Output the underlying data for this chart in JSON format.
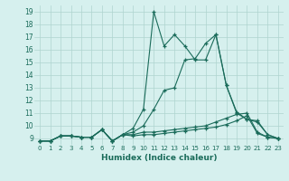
{
  "xlabel": "Humidex (Indice chaleur)",
  "bg_color": "#d6f0ee",
  "grid_color": "#afd4cf",
  "line_color": "#1a6b5a",
  "xlim": [
    -0.5,
    23.5
  ],
  "ylim": [
    8.5,
    19.5
  ],
  "xticks": [
    0,
    1,
    2,
    3,
    4,
    5,
    6,
    7,
    8,
    9,
    10,
    11,
    12,
    13,
    14,
    15,
    16,
    17,
    18,
    19,
    20,
    21,
    22,
    23
  ],
  "yticks": [
    9,
    10,
    11,
    12,
    13,
    14,
    15,
    16,
    17,
    18,
    19
  ],
  "series": [
    [
      8.8,
      8.8,
      9.2,
      9.2,
      9.1,
      9.1,
      9.7,
      8.8,
      9.3,
      9.2,
      9.3,
      9.3,
      9.4,
      9.5,
      9.6,
      9.7,
      9.8,
      9.9,
      10.1,
      10.4,
      10.8,
      9.4,
      9.1,
      9.0
    ],
    [
      8.8,
      8.8,
      9.2,
      9.2,
      9.1,
      9.1,
      9.7,
      8.8,
      9.3,
      9.3,
      9.5,
      9.5,
      9.6,
      9.7,
      9.8,
      9.9,
      10.0,
      10.3,
      10.6,
      10.9,
      11.0,
      9.5,
      9.1,
      9.0
    ],
    [
      8.8,
      8.8,
      9.2,
      9.2,
      9.1,
      9.1,
      9.7,
      8.8,
      9.3,
      9.5,
      10.0,
      11.3,
      12.8,
      13.0,
      15.2,
      15.3,
      16.5,
      17.2,
      13.2,
      11.1,
      10.5,
      10.4,
      9.3,
      9.0
    ],
    [
      8.8,
      8.8,
      9.2,
      9.2,
      9.1,
      9.1,
      9.7,
      8.8,
      9.3,
      9.8,
      11.3,
      19.0,
      16.3,
      17.2,
      16.3,
      15.2,
      15.2,
      17.2,
      13.2,
      11.0,
      10.5,
      10.3,
      9.3,
      9.0
    ]
  ]
}
